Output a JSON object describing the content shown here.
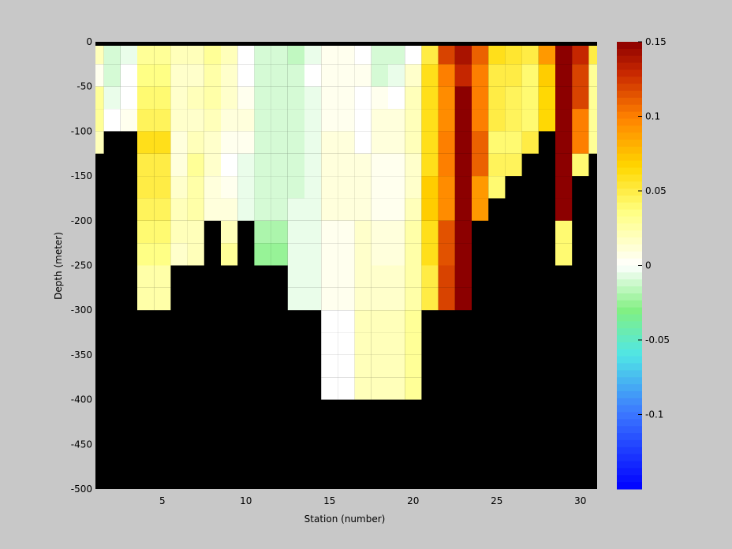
{
  "chart_data": {
    "type": "heatmap",
    "xlabel": "Station (number)",
    "ylabel": "Depth (meter)",
    "xlim": [
      1,
      31
    ],
    "ylim": [
      -500,
      0
    ],
    "xticks": [
      5,
      10,
      15,
      20,
      25,
      30
    ],
    "yticks": [
      0,
      -50,
      -100,
      -150,
      -200,
      -250,
      -300,
      -350,
      -400,
      -450,
      -500
    ],
    "clim": [
      -0.15,
      0.15
    ],
    "colorbar_ticks": [
      0.15,
      0.1,
      0.05,
      0,
      -0.05,
      -0.1
    ],
    "colorbar_tick_labels": [
      "0.15",
      "0.1",
      "0.05",
      "0",
      "-0.05",
      "-0.1"
    ],
    "stations": [
      1,
      2,
      3,
      4,
      5,
      6,
      7,
      8,
      9,
      10,
      11,
      12,
      13,
      14,
      15,
      16,
      17,
      18,
      19,
      20,
      21,
      22,
      23,
      24,
      25,
      26,
      27,
      28,
      29,
      30,
      31
    ],
    "depth_bins": [
      0,
      -25,
      -50,
      -75,
      -100,
      -125,
      -150,
      -175,
      -200,
      -225,
      -250,
      -275,
      -300,
      -325,
      -350,
      -375,
      -400,
      -425,
      -450,
      -475
    ],
    "values": [
      [
        0.02,
        0.005,
        0.03,
        0.03,
        0.02
      ],
      [
        -0.01,
        -0.01,
        -0.005,
        0.0
      ],
      [
        -0.005,
        0.0,
        0.0,
        0.005
      ],
      [
        0.03,
        0.035,
        0.04,
        0.045,
        0.06,
        0.05,
        0.05,
        0.045,
        0.04,
        0.035,
        0.025,
        0.025
      ],
      [
        0.03,
        0.035,
        0.04,
        0.045,
        0.06,
        0.05,
        0.05,
        0.045,
        0.04,
        0.035,
        0.025,
        0.025
      ],
      [
        0.02,
        0.015,
        0.015,
        0.015,
        0.01,
        0.01,
        0.015,
        0.02,
        0.02,
        0.015
      ],
      [
        0.02,
        0.015,
        0.02,
        0.015,
        0.02,
        0.03,
        0.025,
        0.025,
        0.02,
        0.02
      ],
      [
        0.03,
        0.025,
        0.025,
        0.02,
        0.015,
        0.015,
        0.01,
        0.01
      ],
      [
        0.02,
        0.015,
        0.015,
        0.01,
        0.005,
        0.0,
        0.005,
        0.01,
        0.02,
        0.03
      ],
      [
        0.0,
        0.0,
        0.005,
        0.01,
        0.005,
        -0.005,
        -0.005,
        -0.005
      ],
      [
        -0.01,
        -0.01,
        -0.01,
        -0.01,
        -0.01,
        -0.01,
        -0.01,
        -0.01,
        -0.02,
        -0.025
      ],
      [
        -0.01,
        -0.01,
        -0.01,
        -0.01,
        -0.01,
        -0.01,
        -0.01,
        -0.01,
        -0.02,
        -0.025
      ],
      [
        -0.015,
        -0.01,
        -0.01,
        -0.01,
        -0.01,
        -0.01,
        -0.01,
        -0.005,
        -0.005,
        -0.005,
        -0.005,
        -0.005
      ],
      [
        -0.005,
        0.0,
        -0.005,
        -0.005,
        -0.005,
        -0.005,
        -0.005,
        -0.005,
        -0.005,
        -0.005,
        -0.005,
        -0.005
      ],
      [
        0.005,
        0.005,
        0.005,
        0.005,
        0.01,
        0.01,
        0.01,
        0.01,
        0.005,
        0.005,
        0.005,
        0.005,
        0.0,
        0.0,
        0.0,
        0.0
      ],
      [
        0.005,
        0.005,
        0.005,
        0.005,
        0.01,
        0.01,
        0.01,
        0.01,
        0.005,
        0.005,
        0.005,
        0.005,
        0.0,
        0.0,
        0.0,
        0.0
      ],
      [
        0.0,
        0.005,
        0.0,
        0.0,
        0.0,
        0.01,
        0.01,
        0.01,
        0.015,
        0.015,
        0.015,
        0.015,
        0.02,
        0.02,
        0.02,
        0.02
      ],
      [
        -0.01,
        -0.01,
        0.005,
        0.01,
        0.01,
        0.005,
        0.005,
        0.005,
        0.01,
        0.01,
        0.015,
        0.015,
        0.02,
        0.02,
        0.02,
        0.02
      ],
      [
        -0.01,
        -0.005,
        0.0,
        0.01,
        0.01,
        0.005,
        0.005,
        0.005,
        0.01,
        0.01,
        0.015,
        0.015,
        0.02,
        0.02,
        0.02,
        0.02
      ],
      [
        0.0,
        0.015,
        0.02,
        0.02,
        0.02,
        0.015,
        0.015,
        0.02,
        0.025,
        0.025,
        0.025,
        0.025,
        0.03,
        0.03,
        0.03,
        0.03
      ],
      [
        0.05,
        0.06,
        0.06,
        0.06,
        0.06,
        0.06,
        0.07,
        0.07,
        0.06,
        0.06,
        0.05,
        0.05
      ],
      [
        0.12,
        0.1,
        0.095,
        0.095,
        0.1,
        0.1,
        0.095,
        0.095,
        0.115,
        0.115,
        0.12,
        0.12
      ],
      [
        0.14,
        0.13,
        0.15,
        0.15,
        0.15,
        0.15,
        0.15,
        0.15,
        0.15,
        0.15,
        0.15,
        0.15
      ],
      [
        0.11,
        0.1,
        0.1,
        0.1,
        0.11,
        0.11,
        0.09,
        0.09
      ],
      [
        0.06,
        0.05,
        0.05,
        0.05,
        0.04,
        0.045,
        0.04
      ],
      [
        0.055,
        0.05,
        0.045,
        0.045,
        0.04,
        0.045
      ],
      [
        0.05,
        0.04,
        0.04,
        0.04,
        0.05
      ],
      [
        0.09,
        0.07,
        0.065,
        0.065
      ],
      [
        0.15,
        0.15,
        0.15,
        0.15,
        0.15,
        0.15,
        0.15,
        0.15,
        0.04,
        0.04
      ],
      [
        0.13,
        0.12,
        0.12,
        0.1,
        0.1,
        0.04
      ],
      [
        0.05,
        0.03,
        0.03,
        0.03,
        0.03
      ]
    ]
  }
}
